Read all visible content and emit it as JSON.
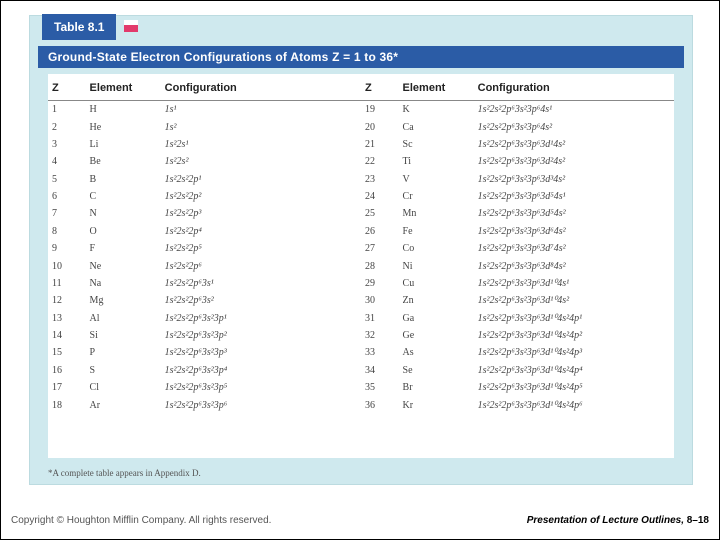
{
  "tab_label": "Table 8.1",
  "title": "Ground-State Electron Configurations of Atoms Z = 1 to 36*",
  "columns": [
    "Z",
    "Element",
    "Configuration",
    "Z",
    "Element",
    "Configuration"
  ],
  "rows": [
    [
      "1",
      "H",
      "1s¹",
      "19",
      "K",
      "1s²2s²2p⁶3s²3p⁶4s¹"
    ],
    [
      "2",
      "He",
      "1s²",
      "20",
      "Ca",
      "1s²2s²2p⁶3s²3p⁶4s²"
    ],
    [
      "3",
      "Li",
      "1s²2s¹",
      "21",
      "Sc",
      "1s²2s²2p⁶3s²3p⁶3d¹4s²"
    ],
    [
      "4",
      "Be",
      "1s²2s²",
      "22",
      "Ti",
      "1s²2s²2p⁶3s²3p⁶3d²4s²"
    ],
    [
      "5",
      "B",
      "1s²2s²2p¹",
      "23",
      "V",
      "1s²2s²2p⁶3s²3p⁶3d³4s²"
    ],
    [
      "6",
      "C",
      "1s²2s²2p²",
      "24",
      "Cr",
      "1s²2s²2p⁶3s²3p⁶3d⁵4s¹"
    ],
    [
      "7",
      "N",
      "1s²2s²2p³",
      "25",
      "Mn",
      "1s²2s²2p⁶3s²3p⁶3d⁵4s²"
    ],
    [
      "8",
      "O",
      "1s²2s²2p⁴",
      "26",
      "Fe",
      "1s²2s²2p⁶3s²3p⁶3d⁶4s²"
    ],
    [
      "9",
      "F",
      "1s²2s²2p⁵",
      "27",
      "Co",
      "1s²2s²2p⁶3s²3p⁶3d⁷4s²"
    ],
    [
      "10",
      "Ne",
      "1s²2s²2p⁶",
      "28",
      "Ni",
      "1s²2s²2p⁶3s²3p⁶3d⁸4s²"
    ],
    [
      "11",
      "Na",
      "1s²2s²2p⁶3s¹",
      "29",
      "Cu",
      "1s²2s²2p⁶3s²3p⁶3d¹⁰4s¹"
    ],
    [
      "12",
      "Mg",
      "1s²2s²2p⁶3s²",
      "30",
      "Zn",
      "1s²2s²2p⁶3s²3p⁶3d¹⁰4s²"
    ],
    [
      "13",
      "Al",
      "1s²2s²2p⁶3s²3p¹",
      "31",
      "Ga",
      "1s²2s²2p⁶3s²3p⁶3d¹⁰4s²4p¹"
    ],
    [
      "14",
      "Si",
      "1s²2s²2p⁶3s²3p²",
      "32",
      "Ge",
      "1s²2s²2p⁶3s²3p⁶3d¹⁰4s²4p²"
    ],
    [
      "15",
      "P",
      "1s²2s²2p⁶3s²3p³",
      "33",
      "As",
      "1s²2s²2p⁶3s²3p⁶3d¹⁰4s²4p³"
    ],
    [
      "16",
      "S",
      "1s²2s²2p⁶3s²3p⁴",
      "34",
      "Se",
      "1s²2s²2p⁶3s²3p⁶3d¹⁰4s²4p⁴"
    ],
    [
      "17",
      "Cl",
      "1s²2s²2p⁶3s²3p⁵",
      "35",
      "Br",
      "1s²2s²2p⁶3s²3p⁶3d¹⁰4s²4p⁵"
    ],
    [
      "18",
      "Ar",
      "1s²2s²2p⁶3s²3p⁶",
      "36",
      "Kr",
      "1s²2s²2p⁶3s²3p⁶3d¹⁰4s²4p⁶"
    ]
  ],
  "footnote": "*A complete table appears in Appendix D.",
  "footer_left": "Copyright © Houghton Mifflin Company. All rights reserved.",
  "footer_right_prefix": "Presentation of Lecture Outlines, ",
  "footer_right_page": "8–18",
  "colors": {
    "accent": "#2b5ca6",
    "card": "#cfe9ee",
    "ink": "#444"
  }
}
